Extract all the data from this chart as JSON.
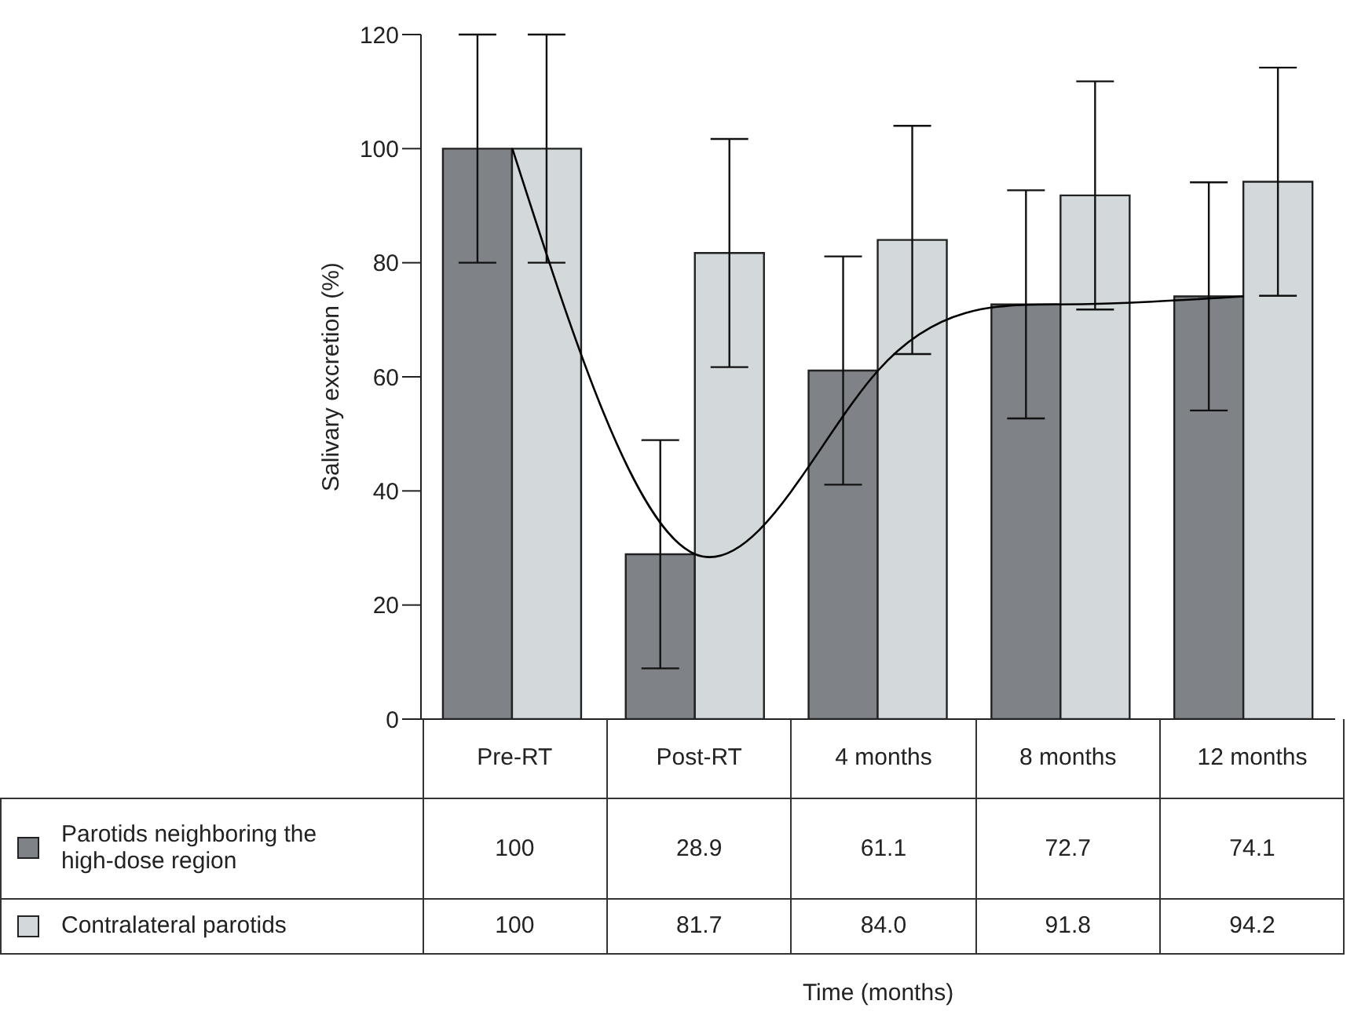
{
  "chart_data": {
    "type": "bar",
    "ylabel": "Salivary excretion (%)",
    "annotations": [
      "Time (months)"
    ],
    "categories": [
      "Pre-RT",
      "Post-RT",
      "4 months",
      "8 months",
      "12 months"
    ],
    "series": [
      {
        "name": "Parotids neighboring the high-dose region",
        "color": "#7f8286",
        "values": [
          100,
          28.9,
          61.1,
          72.7,
          74.1
        ],
        "value_labels": [
          "100",
          "28.9",
          "61.1",
          "72.7",
          "74.1"
        ],
        "errors": [
          20,
          20,
          20,
          20,
          20
        ]
      },
      {
        "name": "Contralateral parotids",
        "color": "#d3d8db",
        "values": [
          100,
          81.7,
          84.0,
          91.8,
          94.2
        ],
        "value_labels": [
          "100",
          "81.7",
          "84.0",
          "91.8",
          "94.2"
        ],
        "errors": [
          20,
          20,
          20,
          20,
          20
        ]
      },
      {
        "type": "line",
        "color": "#000000",
        "x": [
          "Pre-RT",
          "Post-RT",
          "4 months",
          "8 months",
          "12 months"
        ],
        "values": [
          100,
          28.9,
          61.1,
          72.7,
          74.1
        ]
      }
    ],
    "ylim": [
      0,
      120
    ],
    "yticks": [
      0,
      20,
      40,
      60,
      80,
      100,
      120
    ],
    "legend": "bottom"
  }
}
